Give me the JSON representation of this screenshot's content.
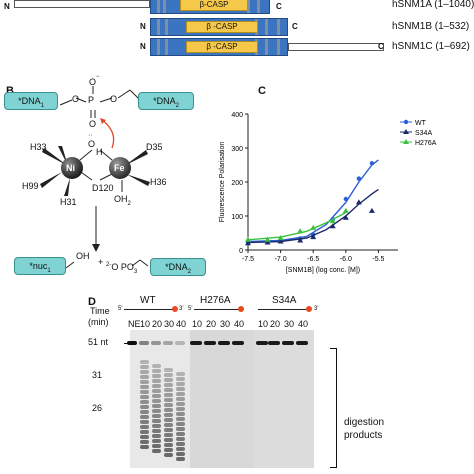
{
  "panel_a": {
    "rows": [
      {
        "n_label": "N",
        "c_label": "C",
        "domain_label": "β-CASP",
        "name": "hSNM1A (1–1040)"
      },
      {
        "n_label": "N",
        "c_label": "C",
        "domain_label": "β -CASP",
        "name": "hSNM1B (1–532)"
      },
      {
        "n_label": "N",
        "c_label": "C",
        "domain_label": "β -CASP",
        "name": "hSNM1C (1–692)"
      }
    ]
  },
  "panel_b": {
    "label": "B",
    "dna1": "*DNA",
    "dna1_sub": "1",
    "dna2": "*DNA",
    "dna2_sub": "2",
    "o_minus": "O",
    "p": "P",
    "o": "O",
    "o2": "O",
    "oh_o": "O",
    "oh_h": "H",
    "ni": "Ni",
    "fe": "Fe",
    "h33": "H33",
    "h99": "H99",
    "h31": "H31",
    "d120": "D120",
    "oh2": "OH",
    "oh2_sub": "2",
    "d35": "D35",
    "h36": "H36",
    "nuc1": "*nuc",
    "nuc1_sub": "1",
    "nuc_oh": "OH",
    "plus": "+",
    "phosphate": "O PO",
    "phosphate_pre": "2-",
    "phosphate_sub": "3",
    "dna2b": "*DNA",
    "dna2b_sub": "2"
  },
  "panel_c": {
    "label": "C"
  },
  "panel_d": {
    "label": "D",
    "time_label": "Time",
    "min_label": "(min)",
    "groups": [
      {
        "name": "WT",
        "lanes": [
          "NE",
          "10",
          "20",
          "30",
          "40"
        ]
      },
      {
        "name": "H276A",
        "lanes": [
          "10",
          "20",
          "30",
          "40"
        ]
      },
      {
        "name": "S34A",
        "lanes": [
          "10",
          "20",
          "30",
          "40"
        ]
      }
    ],
    "five_prime": "5'",
    "three_prime": "3'",
    "markers": [
      "51 nt",
      "31",
      "26"
    ],
    "digestion": "digestion",
    "products": "products"
  },
  "chart_data": {
    "type": "scatter",
    "title": "",
    "xlabel": "[SNM1B] (log conc. [M])",
    "ylabel": "Fluorescence Polarisation",
    "xlim": [
      -7.5,
      -5.2
    ],
    "ylim": [
      0,
      400
    ],
    "x_ticks": [
      "-7.5",
      "-7.0",
      "-6.5",
      "-6.0",
      "-5.5"
    ],
    "y_ticks": [
      "0",
      "100",
      "200",
      "300",
      "400"
    ],
    "legend_position": "top-right",
    "series": [
      {
        "name": "WT",
        "color": "#2a5fd6",
        "marker": "circle",
        "x": [
          -7.5,
          -7.2,
          -7.0,
          -6.7,
          -6.5,
          -6.2,
          -6.0,
          -5.8,
          -5.6
        ],
        "y": [
          22,
          24,
          28,
          34,
          45,
          90,
          150,
          210,
          255
        ],
        "fit": [
          [
            -7.5,
            25
          ],
          [
            -7.0,
            28
          ],
          [
            -6.6,
            40
          ],
          [
            -6.3,
            75
          ],
          [
            -6.0,
            140
          ],
          [
            -5.8,
            200
          ],
          [
            -5.6,
            250
          ],
          [
            -5.5,
            265
          ]
        ]
      },
      {
        "name": "S34A",
        "color": "#1b2a6b",
        "marker": "triangle",
        "x": [
          -7.5,
          -7.2,
          -7.0,
          -6.7,
          -6.5,
          -6.2,
          -6.0,
          -5.8,
          -5.6
        ],
        "y": [
          20,
          22,
          25,
          28,
          38,
          70,
          95,
          140,
          115
        ],
        "fit": [
          [
            -7.5,
            22
          ],
          [
            -7.0,
            25
          ],
          [
            -6.6,
            35
          ],
          [
            -6.3,
            60
          ],
          [
            -6.0,
            100
          ],
          [
            -5.8,
            135
          ],
          [
            -5.6,
            165
          ],
          [
            -5.5,
            178
          ]
        ]
      },
      {
        "name": "H276A",
        "color": "#38c23f",
        "marker": "triangle",
        "x": [
          -7.5,
          -7.2,
          -7.0,
          -6.7,
          -6.5,
          -6.2,
          -6.0
        ],
        "y": [
          30,
          30,
          35,
          55,
          65,
          85,
          115
        ],
        "fit": [
          [
            -7.5,
            30
          ],
          [
            -7.0,
            38
          ],
          [
            -6.6,
            55
          ],
          [
            -6.3,
            80
          ],
          [
            -6.0,
            110
          ]
        ]
      }
    ]
  }
}
